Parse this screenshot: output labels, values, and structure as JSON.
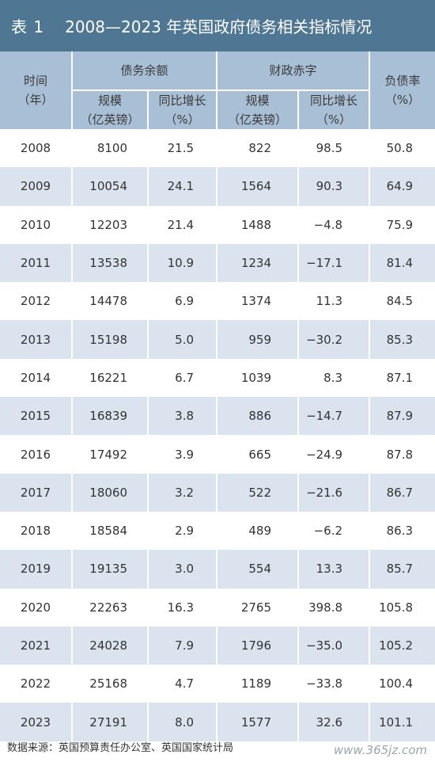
{
  "title": {
    "label": "表 1",
    "text": "2008—2023 年英国政府债务相关指标情况"
  },
  "headers": {
    "year": "时间\n（年）",
    "debt_group": "债务余额",
    "deficit_group": "财政赤字",
    "ratio": "负债率\n（%）",
    "debt_scale": "规模\n（亿英镑）",
    "debt_growth": "同比增长\n（%）",
    "deficit_scale": "规模\n（亿英镑）",
    "deficit_growth": "同比增长\n（%）"
  },
  "rows": [
    {
      "year": "2008",
      "debt": "8100",
      "debt_growth": "21.5",
      "deficit": "822",
      "deficit_growth": "98.5",
      "ratio": "50.8"
    },
    {
      "year": "2009",
      "debt": "10054",
      "debt_growth": "24.1",
      "deficit": "1564",
      "deficit_growth": "90.3",
      "ratio": "64.9"
    },
    {
      "year": "2010",
      "debt": "12203",
      "debt_growth": "21.4",
      "deficit": "1488",
      "deficit_growth": "−4.8",
      "ratio": "75.9"
    },
    {
      "year": "2011",
      "debt": "13538",
      "debt_growth": "10.9",
      "deficit": "1234",
      "deficit_growth": "−17.1",
      "ratio": "81.4"
    },
    {
      "year": "2012",
      "debt": "14478",
      "debt_growth": "6.9",
      "deficit": "1374",
      "deficit_growth": "11.3",
      "ratio": "84.5"
    },
    {
      "year": "2013",
      "debt": "15198",
      "debt_growth": "5.0",
      "deficit": "959",
      "deficit_growth": "−30.2",
      "ratio": "85.3"
    },
    {
      "year": "2014",
      "debt": "16221",
      "debt_growth": "6.7",
      "deficit": "1039",
      "deficit_growth": "8.3",
      "ratio": "87.1"
    },
    {
      "year": "2015",
      "debt": "16839",
      "debt_growth": "3.8",
      "deficit": "886",
      "deficit_growth": "−14.7",
      "ratio": "87.9"
    },
    {
      "year": "2016",
      "debt": "17492",
      "debt_growth": "3.9",
      "deficit": "665",
      "deficit_growth": "−24.9",
      "ratio": "87.8"
    },
    {
      "year": "2017",
      "debt": "18060",
      "debt_growth": "3.2",
      "deficit": "522",
      "deficit_growth": "−21.6",
      "ratio": "86.7"
    },
    {
      "year": "2018",
      "debt": "18584",
      "debt_growth": "2.9",
      "deficit": "489",
      "deficit_growth": "−6.2",
      "ratio": "86.3"
    },
    {
      "year": "2019",
      "debt": "19135",
      "debt_growth": "3.0",
      "deficit": "554",
      "deficit_growth": "13.3",
      "ratio": "85.7"
    },
    {
      "year": "2020",
      "debt": "22263",
      "debt_growth": "16.3",
      "deficit": "2765",
      "deficit_growth": "398.8",
      "ratio": "105.8"
    },
    {
      "year": "2021",
      "debt": "24028",
      "debt_growth": "7.9",
      "deficit": "1796",
      "deficit_growth": "−35.0",
      "ratio": "105.2"
    },
    {
      "year": "2022",
      "debt": "25168",
      "debt_growth": "4.7",
      "deficit": "1189",
      "deficit_growth": "−33.8",
      "ratio": "100.4"
    },
    {
      "year": "2023",
      "debt": "27191",
      "debt_growth": "8.0",
      "deficit": "1577",
      "deficit_growth": "32.6",
      "ratio": "101.1"
    }
  ],
  "source": "数据来源：英国预算责任办公室、英国国家统计局",
  "watermark": "www.365jz.com",
  "colors": {
    "title_bg": "#4f7692",
    "header_bg": "#a9bfd6",
    "stripe": "#dbe3ee"
  }
}
